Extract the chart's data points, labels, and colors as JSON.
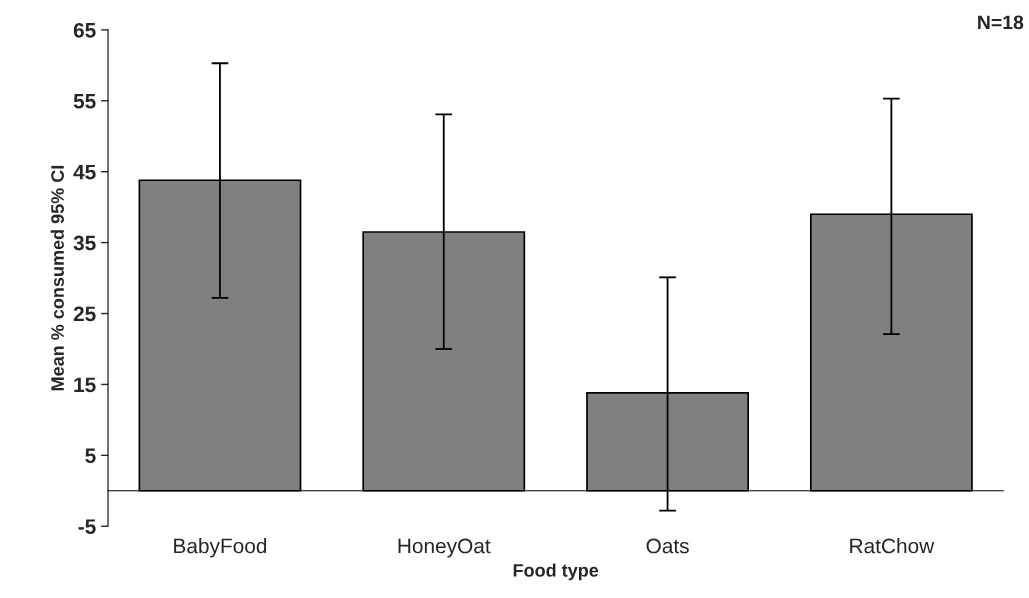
{
  "chart_data": {
    "type": "bar",
    "categories": [
      "BabyFood",
      "HoneyOat",
      "Oats",
      "RatChow"
    ],
    "values": [
      43.8,
      36.5,
      13.8,
      39.0
    ],
    "errors": [
      [
        27.2,
        60.3
      ],
      [
        20.0,
        53.1
      ],
      [
        -2.8,
        30.1
      ],
      [
        22.1,
        55.3
      ]
    ],
    "color": "#808080",
    "xlabel": "Food type",
    "ylabel": "Mean % consumed 95% CI",
    "ylim": [
      -5,
      65
    ],
    "yticks": [
      -5,
      5,
      15,
      25,
      35,
      45,
      55,
      65
    ],
    "annotations": [
      "N=18"
    ],
    "grid": false,
    "legend": false
  }
}
